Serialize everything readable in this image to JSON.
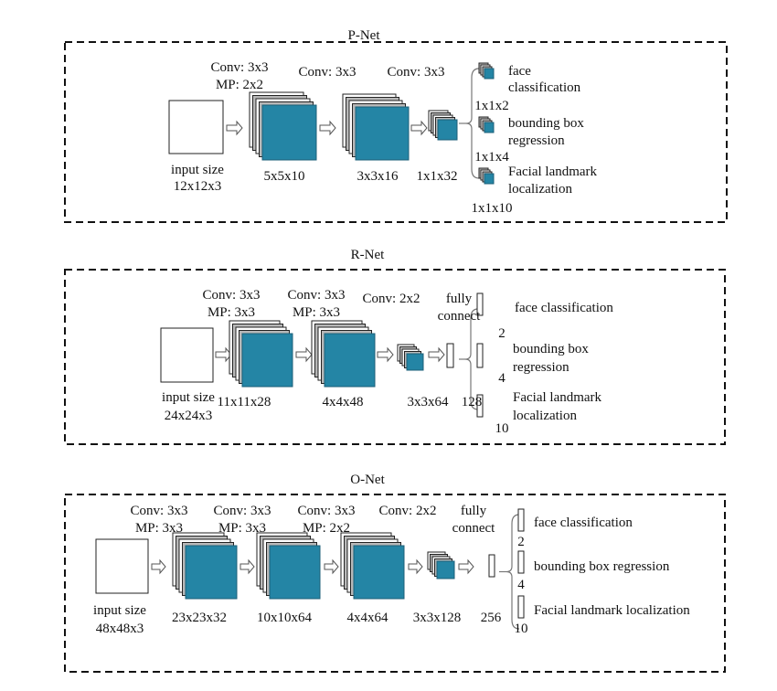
{
  "colors": {
    "feature_map": "#2485a5",
    "back_layer_light": "#ffffff",
    "back_layer_gray": "#b8b8b8",
    "border": "#111111"
  },
  "networks": [
    {
      "title": "P-Net",
      "input": {
        "label": "input size",
        "size": "12x12x3"
      },
      "layers": [
        {
          "op": [
            "Conv: 3x3",
            "MP: 2x2"
          ],
          "output": "5x5x10"
        },
        {
          "op": [
            "Conv: 3x3"
          ],
          "output": "3x3x16"
        },
        {
          "op": [
            "Conv: 3x3"
          ],
          "output": "1x1x32"
        }
      ],
      "outputs": [
        {
          "lines": [
            "face",
            "classification"
          ],
          "dim": "1x1x2"
        },
        {
          "lines": [
            "bounding box",
            "regression"
          ],
          "dim": "1x1x4"
        },
        {
          "lines": [
            "Facial landmark",
            "localization"
          ],
          "dim": "1x1x10"
        }
      ]
    },
    {
      "title": "R-Net",
      "input": {
        "label": "input size",
        "size": "24x24x3"
      },
      "layers": [
        {
          "op": [
            "Conv: 3x3",
            "MP: 3x3"
          ],
          "output": "11x11x28"
        },
        {
          "op": [
            "Conv: 3x3",
            "MP: 3x3"
          ],
          "output": "4x4x48"
        },
        {
          "op": [
            "Conv: 2x2"
          ],
          "output": "3x3x64"
        }
      ],
      "fc": {
        "label": [
          "fully",
          "connect"
        ],
        "size": "128"
      },
      "outputs": [
        {
          "lines": [
            "face classification"
          ],
          "dim": "2"
        },
        {
          "lines": [
            "bounding box",
            "regression"
          ],
          "dim": "4"
        },
        {
          "lines": [
            "Facial landmark",
            "localization"
          ],
          "dim": "10"
        }
      ]
    },
    {
      "title": "O-Net",
      "input": {
        "label": "input size",
        "size": "48x48x3"
      },
      "layers": [
        {
          "op": [
            "Conv: 3x3",
            "MP: 3x3"
          ],
          "output": "23x23x32"
        },
        {
          "op": [
            "Conv: 3x3",
            "MP: 3x3"
          ],
          "output": "10x10x64"
        },
        {
          "op": [
            "Conv: 3x3",
            "MP: 2x2"
          ],
          "output": "4x4x64"
        },
        {
          "op": [
            "Conv: 2x2"
          ],
          "output": "3x3x128"
        }
      ],
      "fc": {
        "label": [
          "fully",
          "connect"
        ],
        "size": "256"
      },
      "outputs": [
        {
          "lines": [
            "face classification"
          ],
          "dim": "2"
        },
        {
          "lines": [
            "bounding box regression"
          ],
          "dim": "4"
        },
        {
          "lines": [
            "Facial landmark localization"
          ],
          "dim": "10"
        }
      ]
    }
  ]
}
